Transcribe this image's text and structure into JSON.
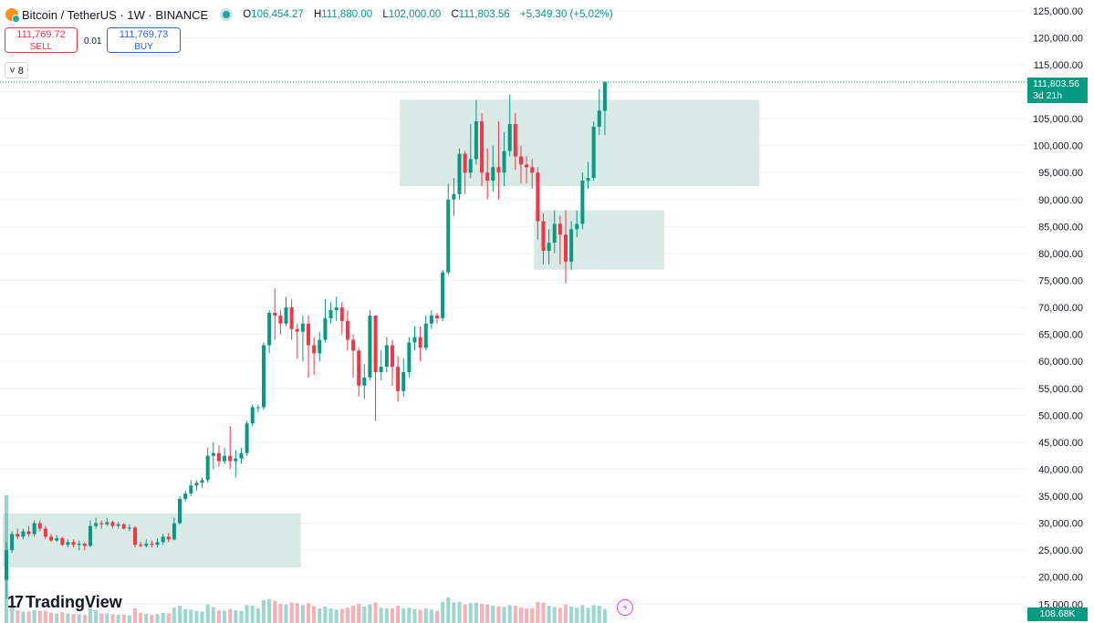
{
  "header": {
    "symbol_title": "Bitcoin / TetherUS · 1W · BINANCE",
    "ohlc": {
      "o_key": "O",
      "o_val": "106,454.27",
      "h_key": "H",
      "h_val": "111,880.00",
      "l_key": "L",
      "l_val": "102,000.00",
      "c_key": "C",
      "c_val": "111,803.56",
      "change": "+5,349.30 (+5.02%)"
    }
  },
  "trade": {
    "sell_price": "111,769.72",
    "sell_label": "SELL",
    "spread": "0.01",
    "buy_price": "111,769.73",
    "buy_label": "BUY"
  },
  "indicators_toggle": "8",
  "price_label": {
    "value": "111,803.56",
    "countdown": "3d 21h"
  },
  "volume_label": "108.68K",
  "brand": "TradingView",
  "icons": {
    "symbol": "bitcoin-coin-icon",
    "live": "market-open-dot-icon",
    "toggle": "chevron-down-icon",
    "flash": "lightning-icon",
    "logo": "tradingview-logo-icon"
  },
  "colors": {
    "up": "#089981",
    "down": "#f23645",
    "zone": "#cfe3e0",
    "sell": "#f23645",
    "buy": "#2962ff"
  },
  "chart_data": {
    "type": "candlestick",
    "interval": "1W",
    "y_axis": {
      "ticks": [
        15000,
        20000,
        25000,
        30000,
        35000,
        40000,
        45000,
        50000,
        55000,
        60000,
        65000,
        70000,
        75000,
        80000,
        85000,
        90000,
        95000,
        100000,
        105000,
        110000,
        115000,
        120000,
        125000
      ],
      "tick_labels": [
        "15,000.00",
        "20,000.00",
        "25,000.00",
        "30,000.00",
        "35,000.00",
        "40,000.00",
        "45,000.00",
        "50,000.00",
        "55,000.00",
        "60,000.00",
        "65,000.00",
        "70,000.00",
        "75,000.00",
        "80,000.00",
        "85,000.00",
        "90,000.00",
        "95,000.00",
        "100,000.00",
        "105,000.00",
        "110,000.00",
        "115,000.00",
        "120,000.00",
        "125,000.00"
      ],
      "range": [
        11500,
        127000
      ],
      "position": "right"
    },
    "zones": [
      {
        "y_low": 92500,
        "y_high": 108500,
        "x_start": 71,
        "x_end": 134
      },
      {
        "y_low": 77000,
        "y_high": 88000,
        "x_start": 95,
        "x_end": 117
      },
      {
        "y_low": 21800,
        "y_high": 31800,
        "x_start": 0,
        "x_end": 52
      }
    ],
    "last_close": 111803.56,
    "candles": [
      [
        19500,
        25000,
        16000,
        26500,
        20000
      ],
      [
        25000,
        28000,
        24500,
        28500,
        2500
      ],
      [
        28000,
        27500,
        27000,
        29000,
        2000
      ],
      [
        27500,
        28500,
        27000,
        29000,
        1800
      ],
      [
        28500,
        28000,
        27500,
        29500,
        1800
      ],
      [
        28000,
        30000,
        27500,
        30500,
        2000
      ],
      [
        30000,
        29000,
        28500,
        30500,
        1900
      ],
      [
        29000,
        27500,
        27000,
        29500,
        1900
      ],
      [
        27500,
        26800,
        26500,
        28000,
        1600
      ],
      [
        26800,
        27200,
        26500,
        27800,
        1500
      ],
      [
        27200,
        26000,
        25800,
        27500,
        1700
      ],
      [
        26000,
        26500,
        25500,
        27000,
        1500
      ],
      [
        26500,
        26000,
        25500,
        27000,
        1400
      ],
      [
        26000,
        26200,
        25000,
        26800,
        1400
      ],
      [
        26200,
        25800,
        25000,
        26500,
        1300
      ],
      [
        25800,
        29500,
        25500,
        30500,
        2300
      ],
      [
        29500,
        30000,
        29000,
        31000,
        2000
      ],
      [
        30000,
        29800,
        29000,
        30500,
        1500
      ],
      [
        29800,
        30200,
        29500,
        31000,
        1500
      ],
      [
        30200,
        29500,
        29000,
        30500,
        1400
      ],
      [
        29500,
        29800,
        29000,
        30200,
        1300
      ],
      [
        29800,
        29000,
        28800,
        30000,
        1300
      ],
      [
        29000,
        29200,
        28500,
        29800,
        1200
      ],
      [
        29200,
        26000,
        25500,
        29500,
        2300
      ],
      [
        26000,
        25800,
        25500,
        26500,
        1600
      ],
      [
        25800,
        26200,
        25500,
        27000,
        1400
      ],
      [
        26200,
        26000,
        25500,
        26800,
        1300
      ],
      [
        26000,
        26500,
        25500,
        27200,
        1400
      ],
      [
        26500,
        27500,
        26000,
        28000,
        1600
      ],
      [
        27500,
        27000,
        26500,
        28200,
        1500
      ],
      [
        27000,
        30000,
        26800,
        31000,
        2400
      ],
      [
        30000,
        34500,
        29800,
        35000,
        2700
      ],
      [
        34500,
        35500,
        34000,
        36000,
        2200
      ],
      [
        35500,
        37000,
        35000,
        38000,
        2100
      ],
      [
        37000,
        37500,
        36000,
        38000,
        1900
      ],
      [
        37500,
        38000,
        36500,
        38500,
        1800
      ],
      [
        38000,
        42500,
        37500,
        44000,
        2900
      ],
      [
        42500,
        43000,
        40000,
        45000,
        2500
      ],
      [
        43000,
        41500,
        40500,
        44500,
        2000
      ],
      [
        41500,
        42500,
        41000,
        44000,
        1900
      ],
      [
        42500,
        41500,
        40000,
        48000,
        2200
      ],
      [
        41500,
        42000,
        38500,
        43500,
        2000
      ],
      [
        42000,
        43000,
        41000,
        44000,
        1900
      ],
      [
        43000,
        48500,
        42500,
        49000,
        2800
      ],
      [
        48500,
        51500,
        48000,
        52000,
        2700
      ],
      [
        51500,
        51500,
        50500,
        52000,
        2300
      ],
      [
        51500,
        63000,
        51000,
        63500,
        3600
      ],
      [
        63000,
        69000,
        61500,
        69500,
        3700
      ],
      [
        69000,
        68500,
        64000,
        73500,
        3500
      ],
      [
        68500,
        67000,
        65000,
        69500,
        3000
      ],
      [
        67000,
        70000,
        66500,
        72000,
        2900
      ],
      [
        70000,
        66000,
        64000,
        71500,
        3200
      ],
      [
        66000,
        65500,
        60500,
        67000,
        3100
      ],
      [
        65500,
        67000,
        60000,
        68500,
        2800
      ],
      [
        67000,
        63000,
        57000,
        68500,
        3100
      ],
      [
        63000,
        61500,
        57500,
        64500,
        2600
      ],
      [
        61500,
        64000,
        60000,
        65500,
        2300
      ],
      [
        64000,
        68000,
        63500,
        71500,
        2600
      ],
      [
        68000,
        69500,
        67000,
        71000,
        2300
      ],
      [
        69500,
        70000,
        67500,
        72000,
        2100
      ],
      [
        70000,
        67500,
        65000,
        71000,
        2200
      ],
      [
        67500,
        64000,
        62000,
        69500,
        2400
      ],
      [
        64000,
        62000,
        57000,
        65000,
        2700
      ],
      [
        62000,
        55500,
        53500,
        62500,
        3000
      ],
      [
        55500,
        57000,
        53000,
        59500,
        2600
      ],
      [
        57000,
        68500,
        56500,
        69500,
        2900
      ],
      [
        68500,
        58000,
        49000,
        68500,
        3200
      ],
      [
        58000,
        59000,
        56500,
        62000,
        2400
      ],
      [
        59000,
        63000,
        58000,
        64500,
        2300
      ],
      [
        63000,
        59000,
        55500,
        64000,
        2300
      ],
      [
        59000,
        54500,
        52500,
        61000,
        2700
      ],
      [
        54500,
        58000,
        53500,
        60500,
        2300
      ],
      [
        58000,
        63500,
        57000,
        64500,
        2400
      ],
      [
        63500,
        64500,
        62000,
        66500,
        2200
      ],
      [
        64500,
        62500,
        60000,
        66500,
        2100
      ],
      [
        62500,
        67000,
        62000,
        68500,
        2300
      ],
      [
        67000,
        68500,
        66000,
        69500,
        2100
      ],
      [
        68500,
        68000,
        67000,
        69000,
        1900
      ],
      [
        68000,
        76500,
        67500,
        77000,
        3300
      ],
      [
        76500,
        90000,
        76000,
        93000,
        4000
      ],
      [
        90000,
        91000,
        87000,
        94000,
        3200
      ],
      [
        91000,
        98500,
        90000,
        99500,
        3300
      ],
      [
        98500,
        95000,
        91000,
        99000,
        2900
      ],
      [
        95000,
        97500,
        94000,
        104000,
        3100
      ],
      [
        97500,
        104500,
        96500,
        108500,
        3200
      ],
      [
        104500,
        95000,
        92500,
        106000,
        3000
      ],
      [
        95000,
        93500,
        90000,
        99500,
        2900
      ],
      [
        93500,
        96000,
        91500,
        100000,
        2700
      ],
      [
        96000,
        95000,
        90000,
        104500,
        2600
      ],
      [
        95000,
        99000,
        92500,
        102500,
        2500
      ],
      [
        99000,
        104000,
        98000,
        109500,
        2800
      ],
      [
        104000,
        98000,
        95500,
        106000,
        2700
      ],
      [
        98000,
        96500,
        93000,
        100000,
        2400
      ],
      [
        96500,
        96000,
        93000,
        98000,
        2300
      ],
      [
        96000,
        95000,
        92000,
        97500,
        2300
      ],
      [
        95000,
        86000,
        82500,
        96000,
        3300
      ],
      [
        86000,
        80500,
        78000,
        87500,
        3200
      ],
      [
        80500,
        82000,
        78000,
        84500,
        2700
      ],
      [
        82000,
        85500,
        80000,
        88000,
        2500
      ],
      [
        85500,
        83500,
        78000,
        87000,
        2400
      ],
      [
        83500,
        78500,
        74500,
        88000,
        2900
      ],
      [
        78500,
        84500,
        77000,
        86000,
        2600
      ],
      [
        84500,
        85500,
        83000,
        88000,
        2400
      ],
      [
        85500,
        93500,
        84500,
        95000,
        2800
      ],
      [
        93500,
        94000,
        92000,
        97000,
        2400
      ],
      [
        94000,
        103500,
        93500,
        104500,
        2800
      ],
      [
        103500,
        106500,
        102000,
        110500,
        2700
      ],
      [
        106454.27,
        111803.56,
        102000,
        111880,
        2200
      ]
    ]
  }
}
